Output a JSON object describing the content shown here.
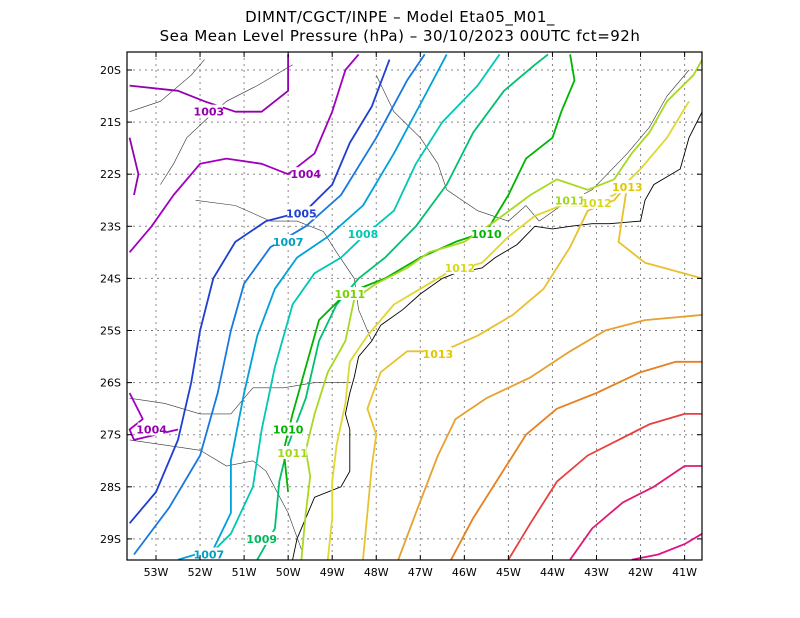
{
  "title_line1": "DIMNT/CGCT/INPE –  Model Eta05_M01_",
  "title_line2": "Sea Mean Level Pressure (hPa) – 30/10/2023 00UTC fct=92h",
  "lat_ticks": [
    "20S",
    "21S",
    "22S",
    "23S",
    "24S",
    "25S",
    "26S",
    "27S",
    "28S",
    "29S"
  ],
  "lon_ticks": [
    "53W",
    "52W",
    "51W",
    "50W",
    "49W",
    "48W",
    "47W",
    "46W",
    "45W",
    "44W",
    "43W",
    "42W",
    "41W"
  ],
  "contour_labels": [
    {
      "text": "1003",
      "color": "#9400b0",
      "lon": -51.8,
      "lat": -20.8
    },
    {
      "text": "1004",
      "color": "#9400b0",
      "lon": -49.6,
      "lat": -22.0
    },
    {
      "text": "1004",
      "color": "#9400b0",
      "lon": -53.1,
      "lat": -26.9
    },
    {
      "text": "1005",
      "color": "#1f3fd0",
      "lon": -49.7,
      "lat": -22.75
    },
    {
      "text": "1007",
      "color": "#00a0c8",
      "lon": -50.0,
      "lat": -23.3
    },
    {
      "text": "1007",
      "color": "#00a0c8",
      "lon": -51.8,
      "lat": -29.3
    },
    {
      "text": "1008",
      "color": "#00c8b4",
      "lon": -48.3,
      "lat": -23.15
    },
    {
      "text": "1009",
      "color": "#00b85a",
      "lon": -50.6,
      "lat": -29.0
    },
    {
      "text": "1010",
      "color": "#00b400",
      "lon": -50.0,
      "lat": -26.9
    },
    {
      "text": "1010",
      "color": "#00b400",
      "lon": -45.5,
      "lat": -23.15
    },
    {
      "text": "1011",
      "color": "#78d000",
      "lon": -48.6,
      "lat": -24.3
    },
    {
      "text": "1011",
      "color": "#a0d818",
      "lon": -49.9,
      "lat": -27.35
    },
    {
      "text": "1011",
      "color": "#a0d818",
      "lon": -43.6,
      "lat": -22.5
    },
    {
      "text": "1012",
      "color": "#d8d818",
      "lon": -46.1,
      "lat": -23.8
    },
    {
      "text": "1012",
      "color": "#d8d818",
      "lon": -43.0,
      "lat": -22.55
    },
    {
      "text": "1013",
      "color": "#e0c800",
      "lon": -46.6,
      "lat": -25.45
    },
    {
      "text": "1013",
      "color": "#e0c800",
      "lon": -42.3,
      "lat": -22.25
    }
  ],
  "colors": {
    "1003": "#9400b0",
    "1004": "#a000c0",
    "1005": "#1f3fd0",
    "1006": "#1878e0",
    "1007": "#00a0d8",
    "1008": "#00c8b4",
    "1009": "#00c070",
    "1010": "#00b400",
    "1011": "#a8d820",
    "1012": "#e0d830",
    "1013": "#e8c030",
    "1014": "#e8a030",
    "1015": "#e88020",
    "1016": "#e84040",
    "1017": "#e01a70",
    "1018": "#e0108c",
    "grid": "#888888",
    "border": "#000000"
  }
}
